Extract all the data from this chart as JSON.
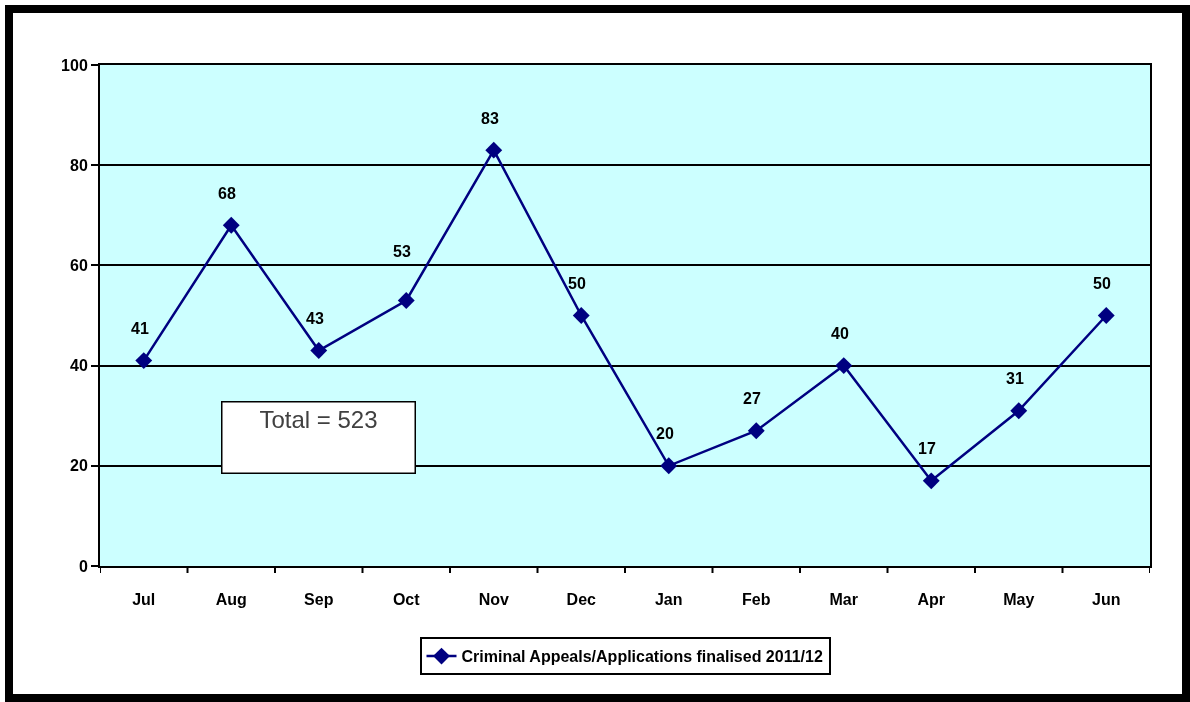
{
  "chart_data": {
    "type": "line",
    "categories": [
      "Jul",
      "Aug",
      "Sep",
      "Oct",
      "Nov",
      "Dec",
      "Jan",
      "Feb",
      "Mar",
      "Apr",
      "May",
      "Jun"
    ],
    "series": [
      {
        "name": "Criminal Appeals/Applications finalised 2011/12",
        "color": "#000080",
        "values": [
          41,
          68,
          43,
          53,
          83,
          50,
          20,
          27,
          40,
          17,
          31,
          50
        ]
      }
    ],
    "ylim": [
      0,
      100
    ],
    "yticks": [
      0,
      20,
      40,
      60,
      80,
      100
    ],
    "grid": "y",
    "legend": "bottom",
    "marker": "diamond",
    "line_style": "solid",
    "data_labels": true,
    "annotations": [
      "Total = 523"
    ]
  }
}
